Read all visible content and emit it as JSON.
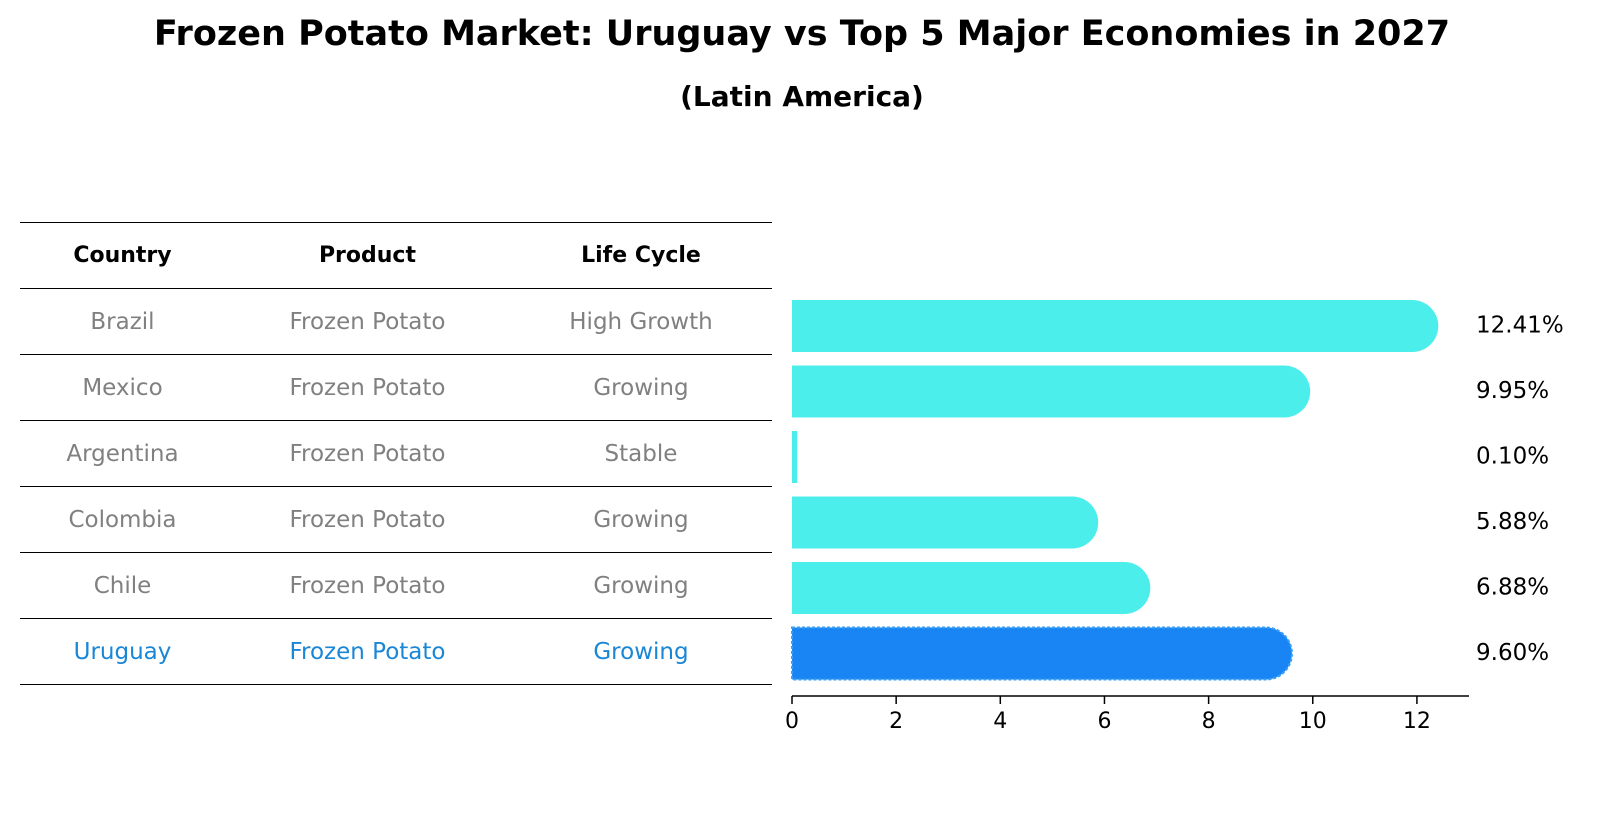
{
  "header": {
    "title": "Frozen Potato Market: Uruguay vs Top 5 Major Economies in 2027",
    "subtitle": "(Latin America)"
  },
  "table": {
    "columns": [
      "Country",
      "Product",
      "Life Cycle"
    ],
    "rows": [
      {
        "country": "Brazil",
        "product": "Frozen Potato",
        "life_cycle": "High Growth"
      },
      {
        "country": "Mexico",
        "product": "Frozen Potato",
        "life_cycle": "Growing"
      },
      {
        "country": "Argentina",
        "product": "Frozen Potato",
        "life_cycle": "Stable"
      },
      {
        "country": "Colombia",
        "product": "Frozen Potato",
        "life_cycle": "Growing"
      },
      {
        "country": "Chile",
        "product": "Frozen Potato",
        "life_cycle": "Growing"
      },
      {
        "country": "Uruguay",
        "product": "Frozen Potato",
        "life_cycle": "Growing"
      }
    ],
    "highlight_row": 5
  },
  "chart_data": {
    "type": "bar",
    "orientation": "horizontal",
    "categories": [
      "Brazil",
      "Mexico",
      "Argentina",
      "Colombia",
      "Chile",
      "Uruguay"
    ],
    "values": [
      12.41,
      9.95,
      0.1,
      5.88,
      6.88,
      9.6
    ],
    "value_labels": [
      "12.41%",
      "9.95%",
      "0.10%",
      "5.88%",
      "6.88%",
      "9.60%"
    ],
    "xlim": [
      0,
      13
    ],
    "xticks": [
      0,
      2,
      4,
      6,
      8,
      10,
      12
    ],
    "highlight_index": 5,
    "grid": false,
    "colors": {
      "bar": "#4beeea",
      "highlight": "#1984f3",
      "highlight_edge": "#3aa0f7",
      "text": "#000000"
    }
  }
}
